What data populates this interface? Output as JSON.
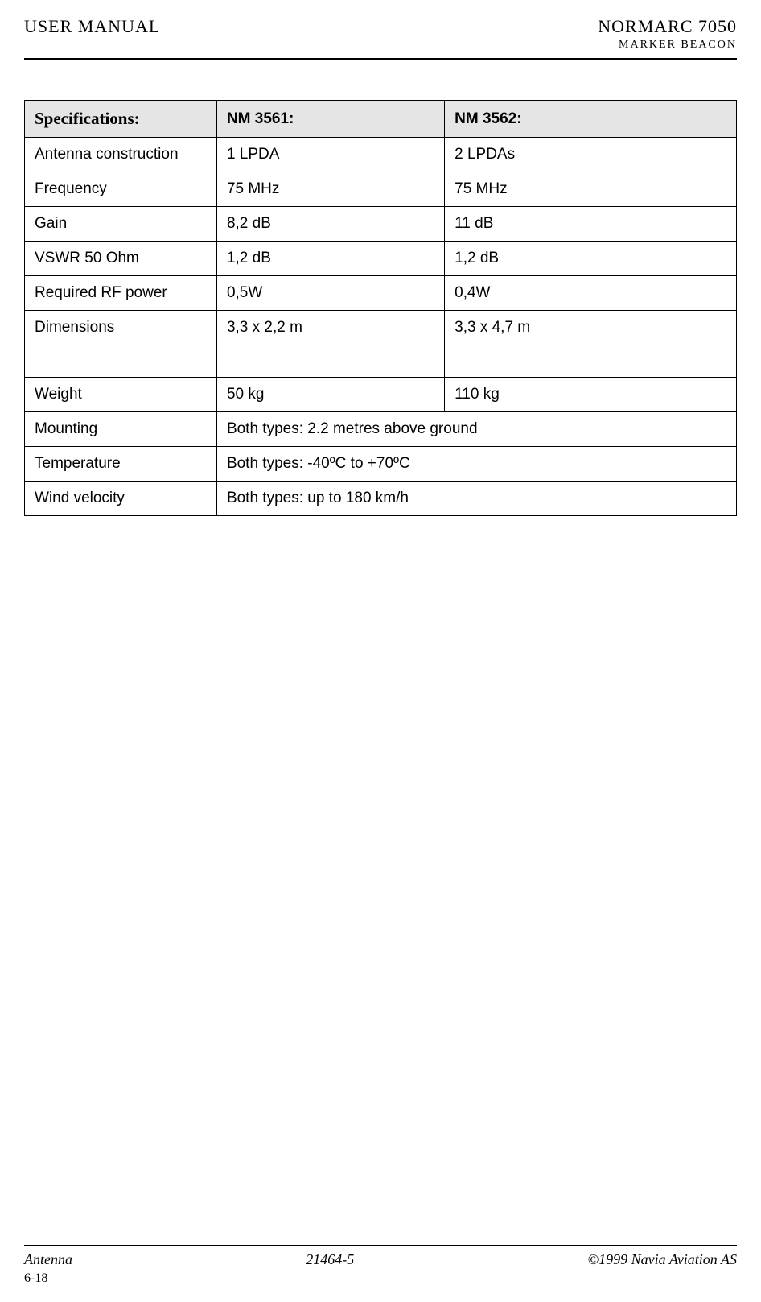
{
  "header": {
    "left": "USER MANUAL",
    "rightTop": "NORMARC 7050",
    "rightBottom": "MARKER BEACON"
  },
  "table": {
    "headers": {
      "col1": "Specifications:",
      "col2": "NM 3561:",
      "col3": "NM 3562:"
    },
    "rows": [
      {
        "spec": "Antenna construction",
        "v1": "1 LPDA",
        "v2": "2 LPDAs"
      },
      {
        "spec": "Frequency",
        "v1": "75 MHz",
        "v2": "75 MHz"
      },
      {
        "spec": "Gain",
        "v1": "8,2 dB",
        "v2": "11 dB"
      },
      {
        "spec": "VSWR 50 Ohm",
        "v1": "1,2 dB",
        "v2": "1,2 dB"
      },
      {
        "spec": "Required RF power",
        "v1": "0,5W",
        "v2": "0,4W"
      },
      {
        "spec": "Dimensions",
        "v1": "3,3 x 2,2 m",
        "v2": "3,3 x 4,7 m"
      }
    ],
    "weightRow": {
      "spec": "Weight",
      "v1": "50 kg",
      "v2": "110 kg"
    },
    "spanRows": [
      {
        "spec": "Mounting",
        "value": "Both types: 2.2 metres above ground"
      },
      {
        "spec": "Temperature",
        "value": "Both types: -40ºC to +70ºC"
      },
      {
        "spec": "Wind velocity",
        "value": "Both types: up to 180 km/h"
      }
    ]
  },
  "footer": {
    "left": "Antenna",
    "center": "21464-5",
    "right": "©1999 Navia Aviation AS",
    "page": "6-18"
  },
  "colors": {
    "headerBg": "#e5e5e5",
    "border": "#000000",
    "text": "#000000",
    "background": "#ffffff"
  }
}
